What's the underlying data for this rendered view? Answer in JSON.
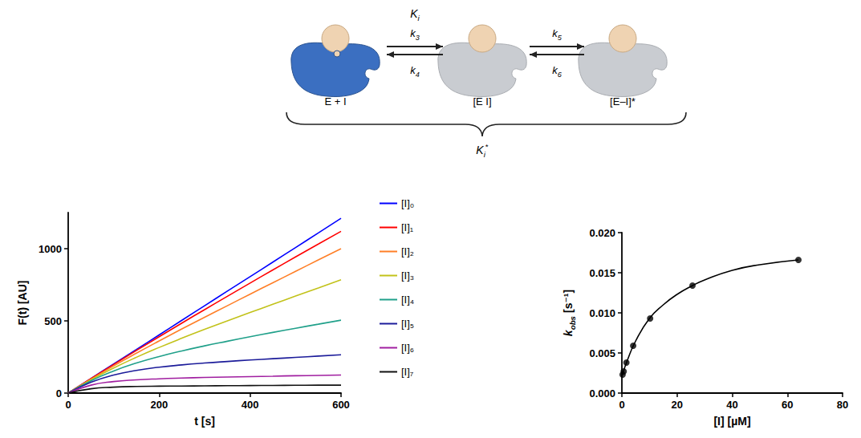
{
  "diagram": {
    "states": [
      {
        "label": "E + I",
        "color": "#3b6fc1"
      },
      {
        "label": "[E I]",
        "color": "#c9ccd1"
      },
      {
        "label": "[E–I]*",
        "color": "#c9ccd1"
      }
    ],
    "first_constant": {
      "text": "K",
      "sub": "i"
    },
    "rates": [
      {
        "text": "k",
        "sub": "3"
      },
      {
        "text": "k",
        "sub": "4"
      },
      {
        "text": "k",
        "sub": "5"
      },
      {
        "text": "k",
        "sub": "6"
      }
    ],
    "overall_constant": {
      "text": "K",
      "sub": "i",
      "sup": "*"
    }
  },
  "chart_data": [
    {
      "type": "line",
      "x_label": "t [s]",
      "y_label": "F(t) [AU]",
      "xlim": [
        0,
        600
      ],
      "xticks": [
        0,
        200,
        400,
        600
      ],
      "ylim": [
        0,
        1250
      ],
      "yticks": [
        0,
        500,
        1000
      ],
      "grid": false,
      "legend": "right",
      "x": [
        0,
        50,
        100,
        150,
        200,
        250,
        300,
        350,
        400,
        450,
        500,
        550,
        600
      ],
      "series": [
        {
          "name": "[I]₀",
          "color": "#0000ff",
          "values": [
            0,
            101,
            202,
            302,
            403,
            504,
            605,
            706,
            806,
            907,
            1008,
            1109,
            1210
          ]
        },
        {
          "name": "[I]₁",
          "color": "#ff0000",
          "values": [
            0,
            100,
            198,
            295,
            390,
            485,
            578,
            670,
            762,
            853,
            943,
            1032,
            1120
          ]
        },
        {
          "name": "[I]₂",
          "color": "#ff7f27",
          "values": [
            0,
            96,
            188,
            276,
            361,
            444,
            525,
            605,
            685,
            764,
            843,
            922,
            1000
          ]
        },
        {
          "name": "[I]₃",
          "color": "#c2c21a",
          "values": [
            0,
            92,
            174,
            248,
            316,
            380,
            441,
            500,
            558,
            615,
            672,
            728,
            785
          ]
        },
        {
          "name": "[I]₄",
          "color": "#20a08a",
          "values": [
            0,
            85,
            153,
            208,
            253,
            292,
            327,
            359,
            390,
            420,
            449,
            477,
            505
          ]
        },
        {
          "name": "[I]₅",
          "color": "#1c1c9a",
          "values": [
            0,
            75,
            125,
            157,
            179,
            195,
            208,
            219,
            229,
            238,
            247,
            256,
            265
          ]
        },
        {
          "name": "[I]₆",
          "color": "#a01ea0",
          "values": [
            0,
            55,
            80,
            92,
            99,
            104,
            108,
            111,
            114,
            117,
            120,
            122,
            125
          ]
        },
        {
          "name": "[I]₇",
          "color": "#111111",
          "values": [
            0,
            30,
            41,
            46,
            48,
            49,
            50,
            51,
            52,
            53,
            54,
            55,
            55
          ]
        }
      ]
    },
    {
      "type": "scatter",
      "x_label": "[I] [µM]",
      "y_label": {
        "text": "k",
        "sub": "obs",
        "after": " [s⁻¹]"
      },
      "xlim": [
        0,
        80
      ],
      "xticks": [
        0,
        20,
        40,
        60,
        80
      ],
      "ylim": [
        0,
        0.02
      ],
      "yticks": [
        {
          "value": 0,
          "label": "0.000"
        },
        {
          "value": 0.005,
          "label": "0.005"
        },
        {
          "value": 0.01,
          "label": "0.010"
        },
        {
          "value": 0.015,
          "label": "0.015"
        },
        {
          "value": 0.02,
          "label": "0.020"
        }
      ],
      "grid": false,
      "series": [
        {
          "type": "scatter",
          "marker": "circle",
          "color": "#000000",
          "x": [
            0.262,
            0.655,
            1.638,
            4.096,
            10.24,
            25.6,
            64
          ],
          "values": [
            0.0023,
            0.0027,
            0.0038,
            0.0059,
            0.0093,
            0.0134,
            0.0166
          ]
        },
        {
          "type": "line",
          "color": "#000000",
          "x": [
            0,
            2,
            5,
            10,
            15,
            20,
            25.6,
            30,
            40,
            50,
            64
          ],
          "values": [
            0.0021,
            0.0041,
            0.0065,
            0.0093,
            0.011,
            0.0123,
            0.0134,
            0.0141,
            0.0153,
            0.016,
            0.0166
          ]
        }
      ]
    }
  ]
}
